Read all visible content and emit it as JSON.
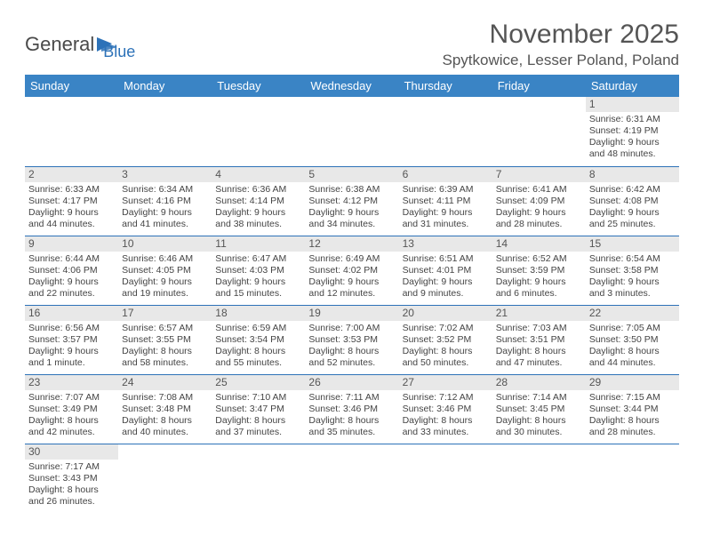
{
  "logo": {
    "text1": "General",
    "text2": "Blue"
  },
  "title": "November 2025",
  "location": "Spytkowice, Lesser Poland, Poland",
  "header_bg": "#3a84c5",
  "rule_color": "#2d72b8",
  "daynum_bg": "#e8e8e8",
  "days": [
    "Sunday",
    "Monday",
    "Tuesday",
    "Wednesday",
    "Thursday",
    "Friday",
    "Saturday"
  ],
  "weeks": [
    [
      null,
      null,
      null,
      null,
      null,
      null,
      {
        "n": "1",
        "sr": "Sunrise: 6:31 AM",
        "ss": "Sunset: 4:19 PM",
        "d1": "Daylight: 9 hours",
        "d2": "and 48 minutes."
      }
    ],
    [
      {
        "n": "2",
        "sr": "Sunrise: 6:33 AM",
        "ss": "Sunset: 4:17 PM",
        "d1": "Daylight: 9 hours",
        "d2": "and 44 minutes."
      },
      {
        "n": "3",
        "sr": "Sunrise: 6:34 AM",
        "ss": "Sunset: 4:16 PM",
        "d1": "Daylight: 9 hours",
        "d2": "and 41 minutes."
      },
      {
        "n": "4",
        "sr": "Sunrise: 6:36 AM",
        "ss": "Sunset: 4:14 PM",
        "d1": "Daylight: 9 hours",
        "d2": "and 38 minutes."
      },
      {
        "n": "5",
        "sr": "Sunrise: 6:38 AM",
        "ss": "Sunset: 4:12 PM",
        "d1": "Daylight: 9 hours",
        "d2": "and 34 minutes."
      },
      {
        "n": "6",
        "sr": "Sunrise: 6:39 AM",
        "ss": "Sunset: 4:11 PM",
        "d1": "Daylight: 9 hours",
        "d2": "and 31 minutes."
      },
      {
        "n": "7",
        "sr": "Sunrise: 6:41 AM",
        "ss": "Sunset: 4:09 PM",
        "d1": "Daylight: 9 hours",
        "d2": "and 28 minutes."
      },
      {
        "n": "8",
        "sr": "Sunrise: 6:42 AM",
        "ss": "Sunset: 4:08 PM",
        "d1": "Daylight: 9 hours",
        "d2": "and 25 minutes."
      }
    ],
    [
      {
        "n": "9",
        "sr": "Sunrise: 6:44 AM",
        "ss": "Sunset: 4:06 PM",
        "d1": "Daylight: 9 hours",
        "d2": "and 22 minutes."
      },
      {
        "n": "10",
        "sr": "Sunrise: 6:46 AM",
        "ss": "Sunset: 4:05 PM",
        "d1": "Daylight: 9 hours",
        "d2": "and 19 minutes."
      },
      {
        "n": "11",
        "sr": "Sunrise: 6:47 AM",
        "ss": "Sunset: 4:03 PM",
        "d1": "Daylight: 9 hours",
        "d2": "and 15 minutes."
      },
      {
        "n": "12",
        "sr": "Sunrise: 6:49 AM",
        "ss": "Sunset: 4:02 PM",
        "d1": "Daylight: 9 hours",
        "d2": "and 12 minutes."
      },
      {
        "n": "13",
        "sr": "Sunrise: 6:51 AM",
        "ss": "Sunset: 4:01 PM",
        "d1": "Daylight: 9 hours",
        "d2": "and 9 minutes."
      },
      {
        "n": "14",
        "sr": "Sunrise: 6:52 AM",
        "ss": "Sunset: 3:59 PM",
        "d1": "Daylight: 9 hours",
        "d2": "and 6 minutes."
      },
      {
        "n": "15",
        "sr": "Sunrise: 6:54 AM",
        "ss": "Sunset: 3:58 PM",
        "d1": "Daylight: 9 hours",
        "d2": "and 3 minutes."
      }
    ],
    [
      {
        "n": "16",
        "sr": "Sunrise: 6:56 AM",
        "ss": "Sunset: 3:57 PM",
        "d1": "Daylight: 9 hours",
        "d2": "and 1 minute."
      },
      {
        "n": "17",
        "sr": "Sunrise: 6:57 AM",
        "ss": "Sunset: 3:55 PM",
        "d1": "Daylight: 8 hours",
        "d2": "and 58 minutes."
      },
      {
        "n": "18",
        "sr": "Sunrise: 6:59 AM",
        "ss": "Sunset: 3:54 PM",
        "d1": "Daylight: 8 hours",
        "d2": "and 55 minutes."
      },
      {
        "n": "19",
        "sr": "Sunrise: 7:00 AM",
        "ss": "Sunset: 3:53 PM",
        "d1": "Daylight: 8 hours",
        "d2": "and 52 minutes."
      },
      {
        "n": "20",
        "sr": "Sunrise: 7:02 AM",
        "ss": "Sunset: 3:52 PM",
        "d1": "Daylight: 8 hours",
        "d2": "and 50 minutes."
      },
      {
        "n": "21",
        "sr": "Sunrise: 7:03 AM",
        "ss": "Sunset: 3:51 PM",
        "d1": "Daylight: 8 hours",
        "d2": "and 47 minutes."
      },
      {
        "n": "22",
        "sr": "Sunrise: 7:05 AM",
        "ss": "Sunset: 3:50 PM",
        "d1": "Daylight: 8 hours",
        "d2": "and 44 minutes."
      }
    ],
    [
      {
        "n": "23",
        "sr": "Sunrise: 7:07 AM",
        "ss": "Sunset: 3:49 PM",
        "d1": "Daylight: 8 hours",
        "d2": "and 42 minutes."
      },
      {
        "n": "24",
        "sr": "Sunrise: 7:08 AM",
        "ss": "Sunset: 3:48 PM",
        "d1": "Daylight: 8 hours",
        "d2": "and 40 minutes."
      },
      {
        "n": "25",
        "sr": "Sunrise: 7:10 AM",
        "ss": "Sunset: 3:47 PM",
        "d1": "Daylight: 8 hours",
        "d2": "and 37 minutes."
      },
      {
        "n": "26",
        "sr": "Sunrise: 7:11 AM",
        "ss": "Sunset: 3:46 PM",
        "d1": "Daylight: 8 hours",
        "d2": "and 35 minutes."
      },
      {
        "n": "27",
        "sr": "Sunrise: 7:12 AM",
        "ss": "Sunset: 3:46 PM",
        "d1": "Daylight: 8 hours",
        "d2": "and 33 minutes."
      },
      {
        "n": "28",
        "sr": "Sunrise: 7:14 AM",
        "ss": "Sunset: 3:45 PM",
        "d1": "Daylight: 8 hours",
        "d2": "and 30 minutes."
      },
      {
        "n": "29",
        "sr": "Sunrise: 7:15 AM",
        "ss": "Sunset: 3:44 PM",
        "d1": "Daylight: 8 hours",
        "d2": "and 28 minutes."
      }
    ],
    [
      {
        "n": "30",
        "sr": "Sunrise: 7:17 AM",
        "ss": "Sunset: 3:43 PM",
        "d1": "Daylight: 8 hours",
        "d2": "and 26 minutes."
      },
      null,
      null,
      null,
      null,
      null,
      null
    ]
  ]
}
